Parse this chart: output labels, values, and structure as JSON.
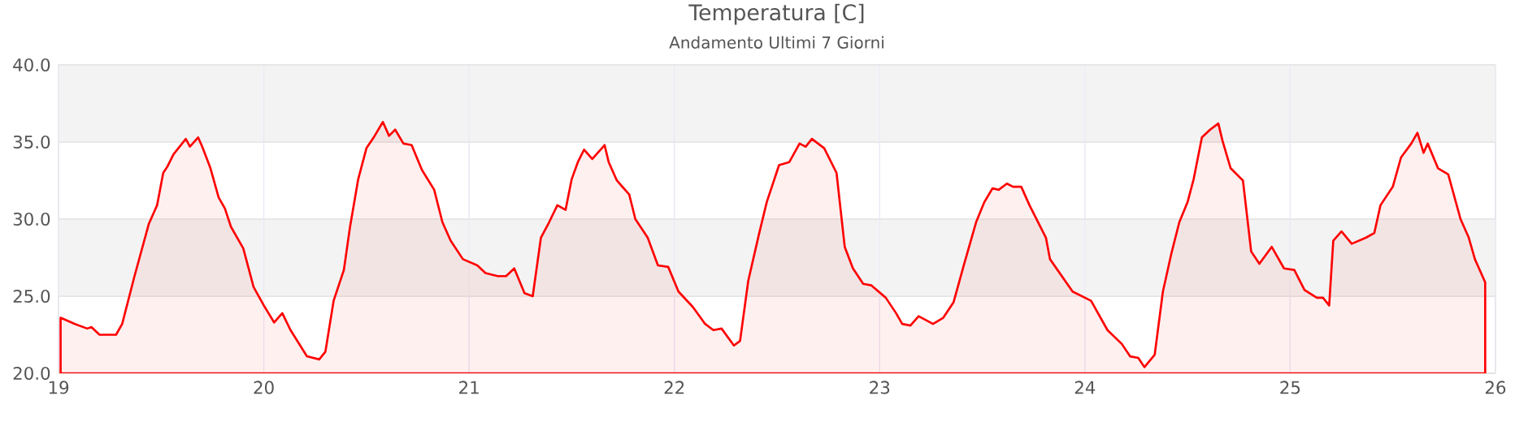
{
  "chart_data": {
    "type": "area",
    "title": "Temperatura [C]",
    "subtitle": "Andamento Ultimi 7 Giorni",
    "x": [
      19.01,
      19.08,
      19.14,
      19.16,
      19.2,
      19.28,
      19.31,
      19.37,
      19.44,
      19.48,
      19.51,
      19.53,
      19.56,
      19.62,
      19.64,
      19.68,
      19.7,
      19.74,
      19.78,
      19.81,
      19.84,
      19.9,
      19.95,
      20.0,
      20.05,
      20.09,
      20.13,
      20.21,
      20.27,
      20.3,
      20.34,
      20.39,
      20.42,
      20.46,
      20.5,
      20.54,
      20.58,
      20.61,
      20.64,
      20.68,
      20.72,
      20.77,
      20.83,
      20.87,
      20.91,
      20.97,
      21.04,
      21.08,
      21.14,
      21.18,
      21.22,
      21.27,
      21.31,
      21.35,
      21.39,
      21.43,
      21.47,
      21.5,
      21.53,
      21.56,
      21.6,
      21.66,
      21.68,
      21.72,
      21.78,
      21.81,
      21.87,
      21.92,
      21.97,
      22.02,
      22.09,
      22.15,
      22.19,
      22.23,
      22.29,
      22.32,
      22.36,
      22.41,
      22.45,
      22.51,
      22.56,
      22.61,
      22.64,
      22.67,
      22.73,
      22.79,
      22.83,
      22.87,
      22.92,
      22.96,
      23.03,
      23.08,
      23.11,
      23.15,
      23.19,
      23.26,
      23.31,
      23.36,
      23.41,
      23.47,
      23.51,
      23.55,
      23.58,
      23.62,
      23.65,
      23.69,
      23.73,
      23.81,
      23.83,
      23.94,
      24.03,
      24.11,
      24.18,
      24.22,
      24.26,
      24.29,
      24.34,
      24.38,
      24.42,
      24.46,
      24.5,
      24.53,
      24.57,
      24.61,
      24.65,
      24.67,
      24.71,
      24.77,
      24.81,
      24.85,
      24.91,
      24.97,
      25.02,
      25.07,
      25.13,
      25.16,
      25.19,
      25.21,
      25.25,
      25.3,
      25.37,
      25.41,
      25.44,
      25.5,
      25.54,
      25.59,
      25.62,
      25.65,
      25.67,
      25.72,
      25.77,
      25.83,
      25.87,
      25.9,
      25.92,
      25.95
    ],
    "values": [
      23.6,
      23.2,
      22.9,
      23.0,
      22.5,
      22.5,
      23.2,
      26.3,
      29.7,
      30.9,
      33.0,
      33.4,
      34.2,
      35.2,
      34.7,
      35.3,
      34.7,
      33.3,
      31.4,
      30.7,
      29.5,
      28.1,
      25.6,
      24.4,
      23.3,
      23.9,
      22.8,
      21.1,
      20.9,
      21.4,
      24.7,
      26.7,
      29.5,
      32.6,
      34.6,
      35.4,
      36.3,
      35.4,
      35.8,
      34.9,
      34.8,
      33.2,
      31.9,
      29.8,
      28.6,
      27.4,
      27.0,
      26.5,
      26.3,
      26.3,
      26.8,
      25.2,
      25.0,
      28.8,
      29.8,
      30.9,
      30.6,
      32.6,
      33.7,
      34.5,
      33.9,
      34.8,
      33.7,
      32.5,
      31.6,
      30.0,
      28.8,
      27.0,
      26.9,
      25.3,
      24.3,
      23.2,
      22.8,
      22.9,
      21.8,
      22.1,
      26.0,
      28.9,
      31.1,
      33.5,
      33.7,
      34.9,
      34.7,
      35.2,
      34.6,
      33.0,
      28.2,
      26.8,
      25.8,
      25.7,
      24.9,
      23.9,
      23.2,
      23.1,
      23.7,
      23.2,
      23.6,
      24.6,
      27.0,
      29.8,
      31.1,
      32.0,
      31.9,
      32.3,
      32.1,
      32.1,
      30.9,
      28.8,
      27.4,
      25.3,
      24.7,
      22.8,
      21.9,
      21.1,
      21.0,
      20.4,
      21.2,
      25.3,
      27.7,
      29.8,
      31.1,
      32.6,
      35.3,
      35.8,
      36.2,
      35.1,
      33.3,
      32.5,
      27.9,
      27.1,
      28.2,
      26.8,
      26.7,
      25.4,
      24.9,
      24.9,
      24.4,
      28.6,
      29.2,
      28.4,
      28.8,
      29.1,
      30.9,
      32.1,
      34.0,
      34.9,
      35.6,
      34.3,
      34.9,
      33.3,
      32.9,
      30.0,
      28.8,
      27.4,
      26.8,
      25.9
    ],
    "color": "#ff0000",
    "xlim": [
      19,
      26
    ],
    "xticks": [
      19,
      20,
      21,
      22,
      23,
      24,
      25,
      26
    ],
    "ylim": [
      20,
      40
    ],
    "yticks": [
      {
        "value": 20,
        "label": "20.0"
      },
      {
        "value": 25,
        "label": "25.0"
      },
      {
        "value": 30,
        "label": "30.0"
      },
      {
        "value": 35,
        "label": "35.0"
      },
      {
        "value": 40,
        "label": "40.0"
      }
    ],
    "bands": [
      {
        "axis": "y",
        "from": 25,
        "to": 30,
        "color": "#f3f3f3"
      },
      {
        "axis": "y",
        "from": 35,
        "to": 40,
        "color": "#f3f3f3"
      }
    ],
    "grid": true,
    "marker": "none",
    "line_style": "solid"
  }
}
